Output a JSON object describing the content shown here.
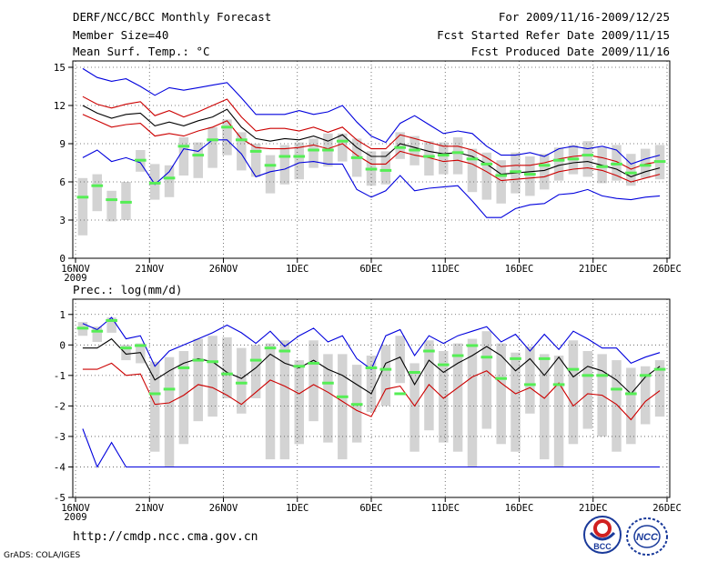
{
  "header": {
    "title": "DERF/NCC/BCC Monthly Forecast",
    "member_size": "Member Size=40",
    "variable": "Mean Surf. Temp.: °C",
    "period": "For 2009/11/16-2009/12/25",
    "started": "Fcst Started Refer Date 2009/11/15",
    "produced": "Fcst Produced Date 2009/11/16"
  },
  "footer": {
    "url": "http://cmdp.ncc.cma.gov.cn",
    "grads": "GrADS: COLA/IGES",
    "logo_bcc_text": "BCC",
    "logo_ncc_text": "NCC"
  },
  "colors": {
    "max": "#0000dd",
    "min": "#0000dd",
    "mean": "#000000",
    "std": "#cc0000",
    "box": "#d3d3d3",
    "median": "#55ee55"
  },
  "chart_data": [
    {
      "type": "line",
      "title": "Mean Surf. Temp.: °C",
      "x_ticks": [
        "16NOV",
        "21NOV",
        "26NOV",
        "1DEC",
        "6DEC",
        "11DEC",
        "16DEC",
        "21DEC",
        "26DEC"
      ],
      "x_year": "2009",
      "x_day_range": [
        0,
        40
      ],
      "ylim": [
        0,
        15.5
      ],
      "y_ticks": [
        0,
        3,
        6,
        9,
        12,
        15
      ],
      "series": [
        {
          "name": "max",
          "values": [
            14.9,
            14.2,
            13.9,
            14.1,
            13.5,
            12.8,
            13.4,
            13.2,
            13.4,
            13.6,
            13.8,
            12.6,
            11.3,
            11.3,
            11.3,
            11.6,
            11.3,
            11.5,
            12.0,
            10.7,
            9.6,
            9.1,
            10.6,
            11.2,
            10.5,
            9.8,
            10.0,
            9.8,
            8.8,
            8.1,
            8.1,
            8.3,
            8.0,
            8.6,
            8.8,
            8.6,
            8.8,
            8.5,
            7.4,
            7.8,
            8.1
          ]
        },
        {
          "name": "plus_std",
          "values": [
            12.7,
            12.1,
            11.8,
            12.1,
            12.3,
            11.2,
            11.6,
            11.1,
            11.5,
            12.0,
            12.5,
            11.1,
            10.0,
            10.2,
            10.2,
            10.0,
            10.3,
            9.9,
            10.3,
            9.3,
            8.6,
            8.6,
            9.7,
            9.4,
            9.1,
            8.8,
            8.8,
            8.5,
            7.9,
            7.2,
            7.3,
            7.3,
            7.5,
            7.8,
            8.0,
            8.1,
            7.9,
            7.6,
            7.0,
            7.4,
            7.6
          ]
        },
        {
          "name": "mean",
          "values": [
            12.0,
            11.4,
            11.0,
            11.3,
            11.4,
            10.4,
            10.7,
            10.4,
            10.8,
            11.1,
            11.7,
            10.3,
            9.4,
            9.2,
            9.4,
            9.3,
            9.6,
            9.2,
            9.7,
            8.7,
            8.0,
            8.0,
            9.0,
            8.7,
            8.4,
            8.2,
            8.3,
            8.0,
            7.4,
            6.6,
            6.7,
            6.8,
            6.9,
            7.3,
            7.5,
            7.6,
            7.3,
            7.0,
            6.4,
            6.8,
            7.1
          ]
        },
        {
          "name": "minus_std",
          "values": [
            11.3,
            10.8,
            10.3,
            10.5,
            10.6,
            9.6,
            9.8,
            9.6,
            10.0,
            10.3,
            10.8,
            9.4,
            8.7,
            8.6,
            8.6,
            8.7,
            8.9,
            8.6,
            9.0,
            8.1,
            7.4,
            7.4,
            8.4,
            8.1,
            7.9,
            7.6,
            7.7,
            7.4,
            6.8,
            6.1,
            6.2,
            6.3,
            6.4,
            6.8,
            7.0,
            7.1,
            6.9,
            6.5,
            6.0,
            6.3,
            6.6
          ]
        },
        {
          "name": "min",
          "values": [
            7.9,
            8.5,
            7.6,
            7.9,
            7.5,
            5.8,
            6.8,
            8.6,
            8.4,
            9.3,
            9.3,
            8.2,
            6.4,
            6.8,
            7.0,
            7.5,
            7.6,
            7.4,
            7.4,
            5.4,
            4.8,
            5.3,
            6.5,
            5.3,
            5.5,
            5.6,
            5.7,
            4.5,
            3.2,
            3.2,
            3.9,
            4.2,
            4.3,
            5.0,
            5.1,
            5.4,
            4.9,
            4.7,
            4.6,
            4.8,
            4.9
          ]
        }
      ],
      "boxes": [
        [
          1.8,
          6.3
        ],
        [
          3.7,
          6.6
        ],
        [
          2.9,
          5.3
        ],
        [
          3.0,
          6.0
        ],
        [
          6.8,
          8.5
        ],
        [
          4.6,
          7.4
        ],
        [
          4.8,
          7.3
        ],
        [
          6.5,
          9.5
        ],
        [
          6.3,
          9.1
        ],
        [
          7.1,
          10.3
        ],
        [
          8.1,
          10.9
        ],
        [
          6.9,
          9.9
        ],
        [
          6.4,
          9.0
        ],
        [
          5.1,
          8.1
        ],
        [
          5.8,
          8.9
        ],
        [
          6.2,
          9.1
        ],
        [
          7.1,
          9.4
        ],
        [
          7.2,
          9.8
        ],
        [
          7.6,
          9.8
        ],
        [
          6.4,
          9.4
        ],
        [
          5.7,
          8.4
        ],
        [
          5.8,
          8.4
        ],
        [
          7.8,
          9.9
        ],
        [
          7.3,
          9.6
        ],
        [
          6.5,
          9.2
        ],
        [
          6.6,
          9.1
        ],
        [
          6.6,
          9.5
        ],
        [
          5.2,
          8.6
        ],
        [
          4.6,
          8.3
        ],
        [
          4.3,
          7.7
        ],
        [
          5.1,
          8.3
        ],
        [
          4.9,
          8.0
        ],
        [
          5.4,
          8.2
        ],
        [
          6.1,
          8.7
        ],
        [
          6.6,
          8.9
        ],
        [
          6.4,
          9.2
        ],
        [
          5.9,
          8.7
        ],
        [
          6.1,
          8.9
        ],
        [
          5.7,
          8.2
        ],
        [
          6.3,
          8.6
        ],
        [
          6.2,
          8.9
        ]
      ],
      "median": [
        4.8,
        5.7,
        4.6,
        4.4,
        7.7,
        5.9,
        6.3,
        8.8,
        8.1,
        9.3,
        10.3,
        9.3,
        8.4,
        7.3,
        8.0,
        8.0,
        8.5,
        8.5,
        9.2,
        7.9,
        7.0,
        6.9,
        8.7,
        8.5,
        8.0,
        8.1,
        8.3,
        7.8,
        7.4,
        6.5,
        6.8,
        6.6,
        7.3,
        7.7,
        7.8,
        8.1,
        7.2,
        7.4,
        6.7,
        7.3,
        7.6
      ]
    },
    {
      "type": "line",
      "title": "Prec.: log(mm/d)",
      "x_ticks": [
        "16NOV",
        "21NOV",
        "26NOV",
        "1DEC",
        "6DEC",
        "11DEC",
        "16DEC",
        "21DEC",
        "26DEC"
      ],
      "x_year": "2009",
      "x_day_range": [
        0,
        40
      ],
      "ylim": [
        -5,
        1.5
      ],
      "y_ticks": [
        -5,
        -4,
        -3,
        -2,
        -1,
        0,
        1
      ],
      "series": [
        {
          "name": "max",
          "values": [
            0.7,
            0.5,
            0.9,
            0.2,
            0.3,
            -0.7,
            -0.2,
            0.0,
            0.2,
            0.4,
            0.65,
            0.4,
            0.05,
            0.45,
            -0.05,
            0.3,
            0.55,
            0.1,
            0.3,
            -0.45,
            -0.8,
            0.3,
            0.5,
            -0.35,
            0.3,
            0.05,
            0.3,
            0.45,
            0.6,
            0.1,
            0.35,
            -0.2,
            0.35,
            -0.15,
            0.45,
            0.2,
            -0.1,
            -0.1,
            -0.6,
            -0.4,
            -0.25
          ]
        },
        {
          "name": "mean",
          "values": [
            -0.1,
            -0.1,
            0.2,
            -0.3,
            -0.25,
            -1.15,
            -0.85,
            -0.6,
            -0.45,
            -0.55,
            -0.9,
            -1.1,
            -0.75,
            -0.3,
            -0.6,
            -0.75,
            -0.5,
            -0.8,
            -1.0,
            -1.3,
            -1.6,
            -0.6,
            -0.4,
            -1.3,
            -0.5,
            -0.9,
            -0.6,
            -0.35,
            -0.05,
            -0.35,
            -0.85,
            -0.45,
            -1.0,
            -0.4,
            -1.05,
            -0.7,
            -0.85,
            -1.15,
            -1.6,
            -1.05,
            -0.7
          ]
        },
        {
          "name": "minus_std",
          "values": [
            -0.8,
            -0.8,
            -0.6,
            -1.0,
            -0.95,
            -1.95,
            -1.9,
            -1.65,
            -1.3,
            -1.4,
            -1.65,
            -1.95,
            -1.55,
            -1.15,
            -1.35,
            -1.6,
            -1.3,
            -1.55,
            -1.85,
            -2.15,
            -2.35,
            -1.45,
            -1.35,
            -2.0,
            -1.3,
            -1.75,
            -1.4,
            -1.05,
            -0.85,
            -1.25,
            -1.6,
            -1.4,
            -1.75,
            -1.25,
            -2.0,
            -1.6,
            -1.65,
            -1.95,
            -2.45,
            -1.85,
            -1.5
          ]
        },
        {
          "name": "min",
          "values": [
            -2.75,
            -4.0,
            -3.2,
            -4.0,
            -4.0,
            -4.0,
            -4.0,
            -4.0,
            -4.0,
            -4.0,
            -4.0,
            -4.0,
            -4.0,
            -4.0,
            -4.0,
            -4.0,
            -4.0,
            -4.0,
            -4.0,
            -4.0,
            -4.0,
            -4.0,
            -4.0,
            -4.0,
            -4.0,
            -4.0,
            -4.0,
            -4.0,
            -4.0,
            -4.0,
            -4.0,
            -4.0,
            -4.0,
            -4.0,
            -4.0,
            -4.0,
            -4.0,
            -4.0,
            -4.0,
            -4.0,
            -4.0
          ]
        }
      ],
      "boxes": [
        [
          0.3,
          0.75
        ],
        [
          0.1,
          0.6
        ],
        [
          0.4,
          0.9
        ],
        [
          -0.5,
          0.0
        ],
        [
          -0.6,
          0.05
        ],
        [
          -3.5,
          -0.55
        ],
        [
          -4.0,
          -0.4
        ],
        [
          -3.25,
          -0.2
        ],
        [
          -2.5,
          0.2
        ],
        [
          -2.35,
          0.3
        ],
        [
          -1.75,
          0.25
        ],
        [
          -2.25,
          -0.1
        ],
        [
          -1.75,
          0.0
        ],
        [
          -3.75,
          0.05
        ],
        [
          -3.75,
          0.15
        ],
        [
          -3.25,
          -0.5
        ],
        [
          -2.5,
          0.15
        ],
        [
          -3.2,
          -0.3
        ],
        [
          -3.75,
          -0.3
        ],
        [
          -3.2,
          -0.65
        ],
        [
          -2.2,
          -0.35
        ],
        [
          -2.0,
          0.0
        ],
        [
          -1.25,
          0.3
        ],
        [
          -3.5,
          -0.6
        ],
        [
          -2.8,
          0.15
        ],
        [
          -3.2,
          -0.2
        ],
        [
          -3.5,
          0.05
        ],
        [
          -4.0,
          0.2
        ],
        [
          -2.75,
          0.45
        ],
        [
          -3.25,
          0.05
        ],
        [
          -3.5,
          -0.25
        ],
        [
          -2.25,
          -0.05
        ],
        [
          -3.75,
          -0.3
        ],
        [
          -4.0,
          -0.35
        ],
        [
          -3.25,
          0.15
        ],
        [
          -2.75,
          -0.2
        ],
        [
          -3.0,
          -0.3
        ],
        [
          -3.5,
          -0.5
        ],
        [
          -3.25,
          -0.75
        ],
        [
          -2.6,
          -0.7
        ],
        [
          -2.35,
          -0.5
        ]
      ],
      "median": [
        0.55,
        0.45,
        0.8,
        -0.1,
        -0.02,
        -1.6,
        -1.45,
        -0.75,
        -0.5,
        -0.55,
        -0.95,
        -1.25,
        -0.5,
        -0.1,
        -0.2,
        -0.7,
        -0.6,
        -1.25,
        -1.7,
        -1.95,
        -0.75,
        -0.8,
        -1.6,
        -0.9,
        -0.2,
        -0.65,
        -0.35,
        -0.02,
        -0.4,
        -1.1,
        -0.45,
        -1.3,
        -0.45,
        -1.3,
        -0.8,
        -1.0,
        -1.0,
        -1.45,
        -1.6,
        -1.0,
        -0.8
      ]
    }
  ]
}
